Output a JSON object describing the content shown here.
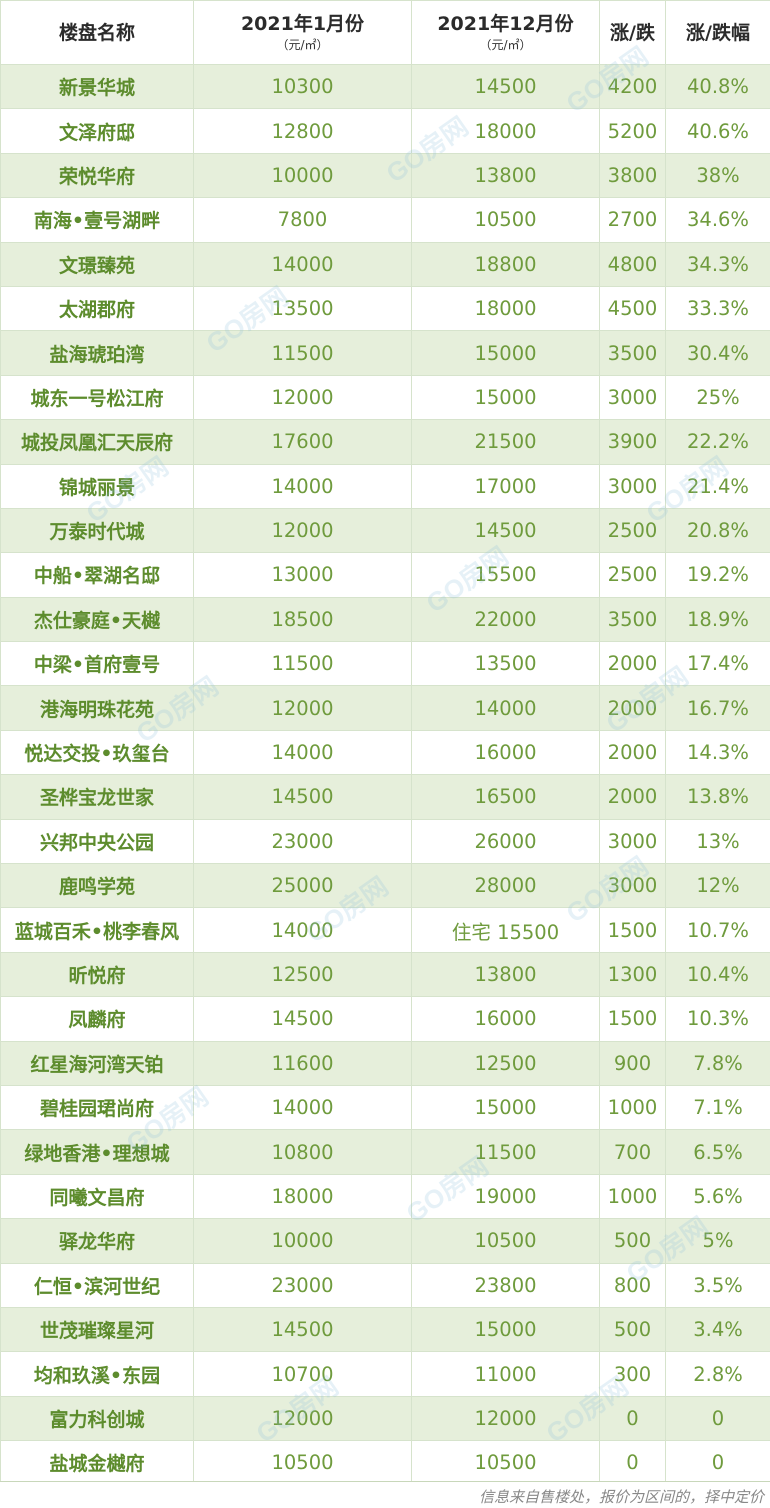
{
  "header": {
    "name": "楼盘名称",
    "jan": "2021年1月份",
    "jan_unit": "（元/㎡）",
    "dec": "2021年12月份",
    "dec_unit": "（元/㎡）",
    "change": "涨/跌",
    "pct": "涨/跌幅"
  },
  "rows": [
    {
      "name": "新景华城",
      "jan": "10300",
      "dec": "14500",
      "change": "4200",
      "pct": "40.8%"
    },
    {
      "name": "文泽府邸",
      "jan": "12800",
      "dec": "18000",
      "change": "5200",
      "pct": "40.6%"
    },
    {
      "name": "荣悦华府",
      "jan": "10000",
      "dec": "13800",
      "change": "3800",
      "pct": "38%"
    },
    {
      "name": "南海•壹号湖畔",
      "jan": "7800",
      "dec": "10500",
      "change": "2700",
      "pct": "34.6%"
    },
    {
      "name": "文璟臻苑",
      "jan": "14000",
      "dec": "18800",
      "change": "4800",
      "pct": "34.3%"
    },
    {
      "name": "太湖郡府",
      "jan": "13500",
      "dec": "18000",
      "change": "4500",
      "pct": "33.3%"
    },
    {
      "name": "盐海琥珀湾",
      "jan": "11500",
      "dec": "15000",
      "change": "3500",
      "pct": "30.4%"
    },
    {
      "name": "城东一号松江府",
      "jan": "12000",
      "dec": "15000",
      "change": "3000",
      "pct": "25%"
    },
    {
      "name": "城投凤凰汇天辰府",
      "jan": "17600",
      "dec": "21500",
      "change": "3900",
      "pct": "22.2%"
    },
    {
      "name": "锦城丽景",
      "jan": "14000",
      "dec": "17000",
      "change": "3000",
      "pct": "21.4%"
    },
    {
      "name": "万泰时代城",
      "jan": "12000",
      "dec": "14500",
      "change": "2500",
      "pct": "20.8%"
    },
    {
      "name": "中船•翠湖名邸",
      "jan": "13000",
      "dec": "15500",
      "change": "2500",
      "pct": "19.2%"
    },
    {
      "name": "杰仕豪庭•天樾",
      "jan": "18500",
      "dec": "22000",
      "change": "3500",
      "pct": "18.9%"
    },
    {
      "name": "中梁•首府壹号",
      "jan": "11500",
      "dec": "13500",
      "change": "2000",
      "pct": "17.4%"
    },
    {
      "name": "港海明珠花苑",
      "jan": "12000",
      "dec": "14000",
      "change": "2000",
      "pct": "16.7%"
    },
    {
      "name": "悦达交投•玖玺台",
      "jan": "14000",
      "dec": "16000",
      "change": "2000",
      "pct": "14.3%"
    },
    {
      "name": "圣桦宝龙世家",
      "jan": "14500",
      "dec": "16500",
      "change": "2000",
      "pct": "13.8%"
    },
    {
      "name": "兴邦中央公园",
      "jan": "23000",
      "dec": "26000",
      "change": "3000",
      "pct": "13%"
    },
    {
      "name": "鹿鸣学苑",
      "jan": "25000",
      "dec": "28000",
      "change": "3000",
      "pct": "12%"
    },
    {
      "name": "蓝城百禾•桃李春风",
      "jan": "14000",
      "dec": "住宅 15500",
      "change": "1500",
      "pct": "10.7%"
    },
    {
      "name": "昕悦府",
      "jan": "12500",
      "dec": "13800",
      "change": "1300",
      "pct": "10.4%"
    },
    {
      "name": "凤麟府",
      "jan": "14500",
      "dec": "16000",
      "change": "1500",
      "pct": "10.3%"
    },
    {
      "name": "红星海河湾天铂",
      "jan": "11600",
      "dec": "12500",
      "change": "900",
      "pct": "7.8%"
    },
    {
      "name": "碧桂园珺尚府",
      "jan": "14000",
      "dec": "15000",
      "change": "1000",
      "pct": "7.1%"
    },
    {
      "name": "绿地香港•理想城",
      "jan": "10800",
      "dec": "11500",
      "change": "700",
      "pct": "6.5%"
    },
    {
      "name": "同曦文昌府",
      "jan": "18000",
      "dec": "19000",
      "change": "1000",
      "pct": "5.6%"
    },
    {
      "name": "驿龙华府",
      "jan": "10000",
      "dec": "10500",
      "change": "500",
      "pct": "5%"
    },
    {
      "name": "仁恒•滨河世纪",
      "jan": "23000",
      "dec": "23800",
      "change": "800",
      "pct": "3.5%"
    },
    {
      "name": "世茂璀璨星河",
      "jan": "14500",
      "dec": "15000",
      "change": "500",
      "pct": "3.4%"
    },
    {
      "name": "均和玖溪•东园",
      "jan": "10700",
      "dec": "11000",
      "change": "300",
      "pct": "2.8%"
    },
    {
      "name": "富力科创城",
      "jan": "12000",
      "dec": "12000",
      "change": "0",
      "pct": "0"
    },
    {
      "name": "盐城金樾府",
      "jan": "10500",
      "dec": "10500",
      "change": "0",
      "pct": "0"
    }
  ],
  "footer": {
    "note": "信息来自售楼处，报价为区间的，择中定价"
  },
  "watermark": "GO房网"
}
